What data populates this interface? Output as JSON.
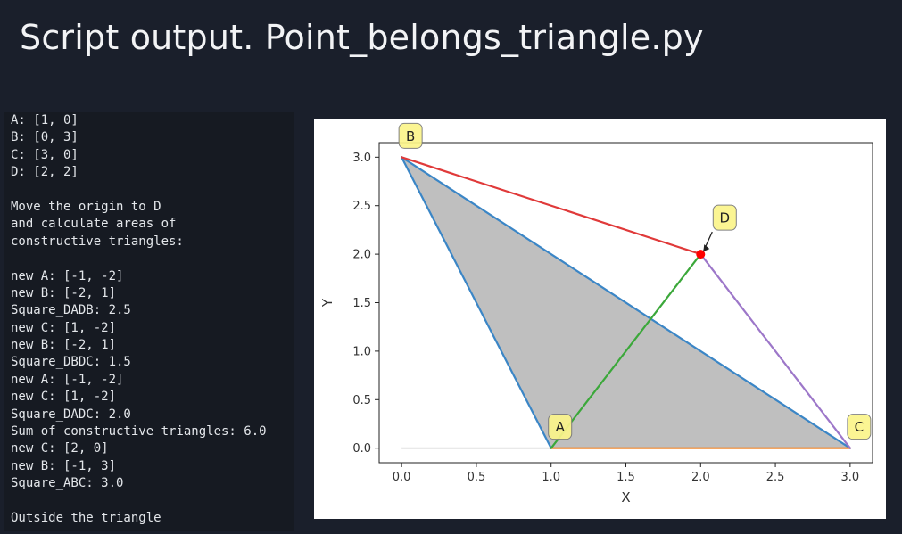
{
  "slide": {
    "title": "Script output. Point_belongs_triangle.py"
  },
  "console": {
    "lines": [
      "A: [1, 0]",
      "B: [0, 3]",
      "C: [3, 0]",
      "D: [2, 2]",
      "",
      "Move the origin to D",
      "and calculate areas of",
      "constructive triangles:",
      "",
      "new A: [-1, -2]",
      "new B: [-2, 1]",
      "Square_DADB: 2.5",
      "new C: [1, -2]",
      "new B: [-2, 1]",
      "Square_DBDC: 1.5",
      "new A: [-1, -2]",
      "new C: [1, -2]",
      "Square_DADC: 2.0",
      "Sum of constructive triangles: 6.0",
      "new C: [2, 0]",
      "new B: [-1, 3]",
      "Square_ABC: 3.0",
      "",
      "Outside the triangle"
    ]
  },
  "chart_data": {
    "type": "line",
    "title": "",
    "xlabel": "X",
    "ylabel": "Y",
    "xlim": [
      -0.15,
      3.15
    ],
    "ylim": [
      -0.15,
      3.15
    ],
    "x_ticks": [
      "0.0",
      "0.5",
      "1.0",
      "1.5",
      "2.0",
      "2.5",
      "3.0"
    ],
    "y_ticks": [
      "0.0",
      "0.5",
      "1.0",
      "1.5",
      "2.0",
      "2.5",
      "3.0"
    ],
    "x_tick_values": [
      0,
      0.5,
      1,
      1.5,
      2,
      2.5,
      3
    ],
    "y_tick_values": [
      0,
      0.5,
      1,
      1.5,
      2,
      2.5,
      3
    ],
    "grid": false,
    "filled_triangle": {
      "vertices": [
        [
          1,
          0
        ],
        [
          0,
          3
        ],
        [
          3,
          0
        ]
      ],
      "fill": "#bfbfbf"
    },
    "baseline": {
      "points": [
        [
          0,
          0
        ],
        [
          3,
          0
        ]
      ],
      "color": "#c4c4c4"
    },
    "segments": [
      {
        "points": [
          [
            1,
            0
          ],
          [
            0,
            3
          ]
        ],
        "color": "#3b86c6"
      },
      {
        "points": [
          [
            0,
            3
          ],
          [
            3,
            0
          ]
        ],
        "color": "#3b86c6"
      },
      {
        "points": [
          [
            1,
            0
          ],
          [
            3,
            0
          ]
        ],
        "color": "#f0882e"
      },
      {
        "points": [
          [
            1,
            0
          ],
          [
            2,
            2
          ]
        ],
        "color": "#3ba83a"
      },
      {
        "points": [
          [
            0,
            3
          ],
          [
            2,
            2
          ]
        ],
        "color": "#e03a3a"
      },
      {
        "points": [
          [
            3,
            0
          ],
          [
            2,
            2
          ]
        ],
        "color": "#9d77c9"
      }
    ],
    "points": [
      {
        "name": "A",
        "x": 1,
        "y": 0
      },
      {
        "name": "B",
        "x": 0,
        "y": 3
      },
      {
        "name": "C",
        "x": 3,
        "y": 0
      },
      {
        "name": "D",
        "x": 2,
        "y": 2,
        "color": "#ff0000"
      }
    ],
    "annotations": [
      {
        "text": "A",
        "x": 1,
        "y": 0
      },
      {
        "text": "B",
        "x": 0,
        "y": 3
      },
      {
        "text": "C",
        "x": 3,
        "y": 0
      },
      {
        "text": "D",
        "x": 2,
        "y": 2,
        "arrow": true
      }
    ],
    "label_style": {
      "fill": "#fbf58a",
      "stroke": "#777777"
    }
  }
}
